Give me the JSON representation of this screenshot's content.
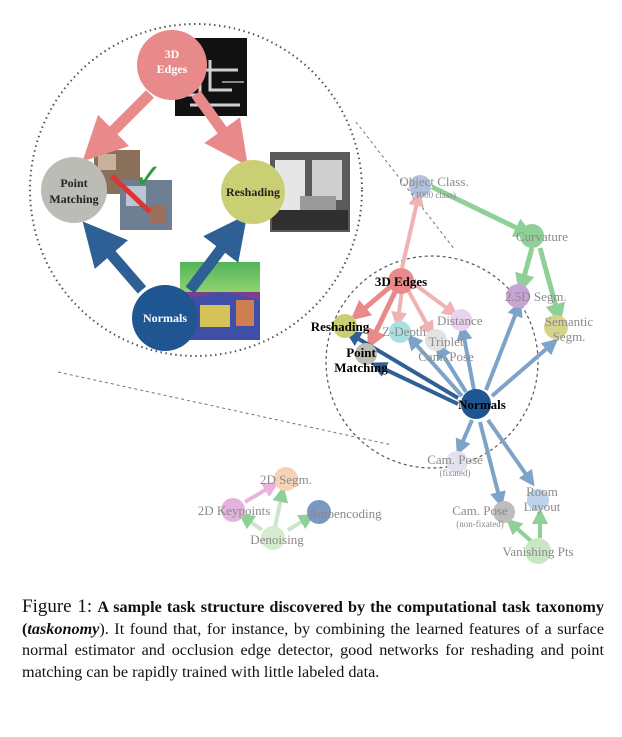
{
  "zoom_panel": {
    "nodes": {
      "edges3d": {
        "l1": "3D",
        "l2": "Edges"
      },
      "point_matching": {
        "l1": "Point",
        "l2": "Matching"
      },
      "reshading": {
        "label": "Reshading"
      },
      "normals": {
        "label": "Normals"
      }
    },
    "checkmark": "✓"
  },
  "graph": {
    "object_class": {
      "label": "Object Class.",
      "sub": "(1000 class)"
    },
    "curvature": {
      "label": "Curvature"
    },
    "edges3d": {
      "label": "3D Edges"
    },
    "segm25d": {
      "label": "2.5D Segm."
    },
    "semantic": {
      "l1": "Semantic",
      "l2": "Segm."
    },
    "reshading": {
      "label": "Reshading"
    },
    "zdepth": {
      "label": "Z-Depth"
    },
    "distance": {
      "label": "Distance"
    },
    "triplet": {
      "l1": "Triplet",
      "l2": "Cam. Pose"
    },
    "point_matching": {
      "l1": "Point",
      "l2": "Matching"
    },
    "normals": {
      "label": "Normals"
    },
    "cam_pose_fix": {
      "label": "Cam. Pose",
      "sub": "(fixated)"
    },
    "cam_pose_nonfix": {
      "label": "Cam. Pose",
      "sub": "(non-fixated)"
    },
    "room_layout": {
      "l1": "Room",
      "l2": "Layout"
    },
    "vanishing": {
      "label": "Vanishing Pts"
    },
    "segm2d": {
      "label": "2D Segm."
    },
    "keypoints2d": {
      "label": "2D Keypoints"
    },
    "autoencoding": {
      "label": "Autoencoding"
    },
    "denoising": {
      "label": "Denoising"
    }
  },
  "colors": {
    "red": "#e98a8a",
    "blue": "#2e5f95",
    "green": "#5fb56f",
    "grey": "#a9a9a3",
    "yellowgreen": "#cbcf73"
  },
  "caption": {
    "fig_label": "Figure 1:",
    "bold_part": "A sample task structure discovered by the computational task taxonomy (",
    "italic_part": "taskonomy",
    "rest": "). It found that, for instance, by combining the learned features of a surface normal estimator and occlusion edge detector, good networks for reshading and point matching can be rapidly trained with little labeled data."
  }
}
